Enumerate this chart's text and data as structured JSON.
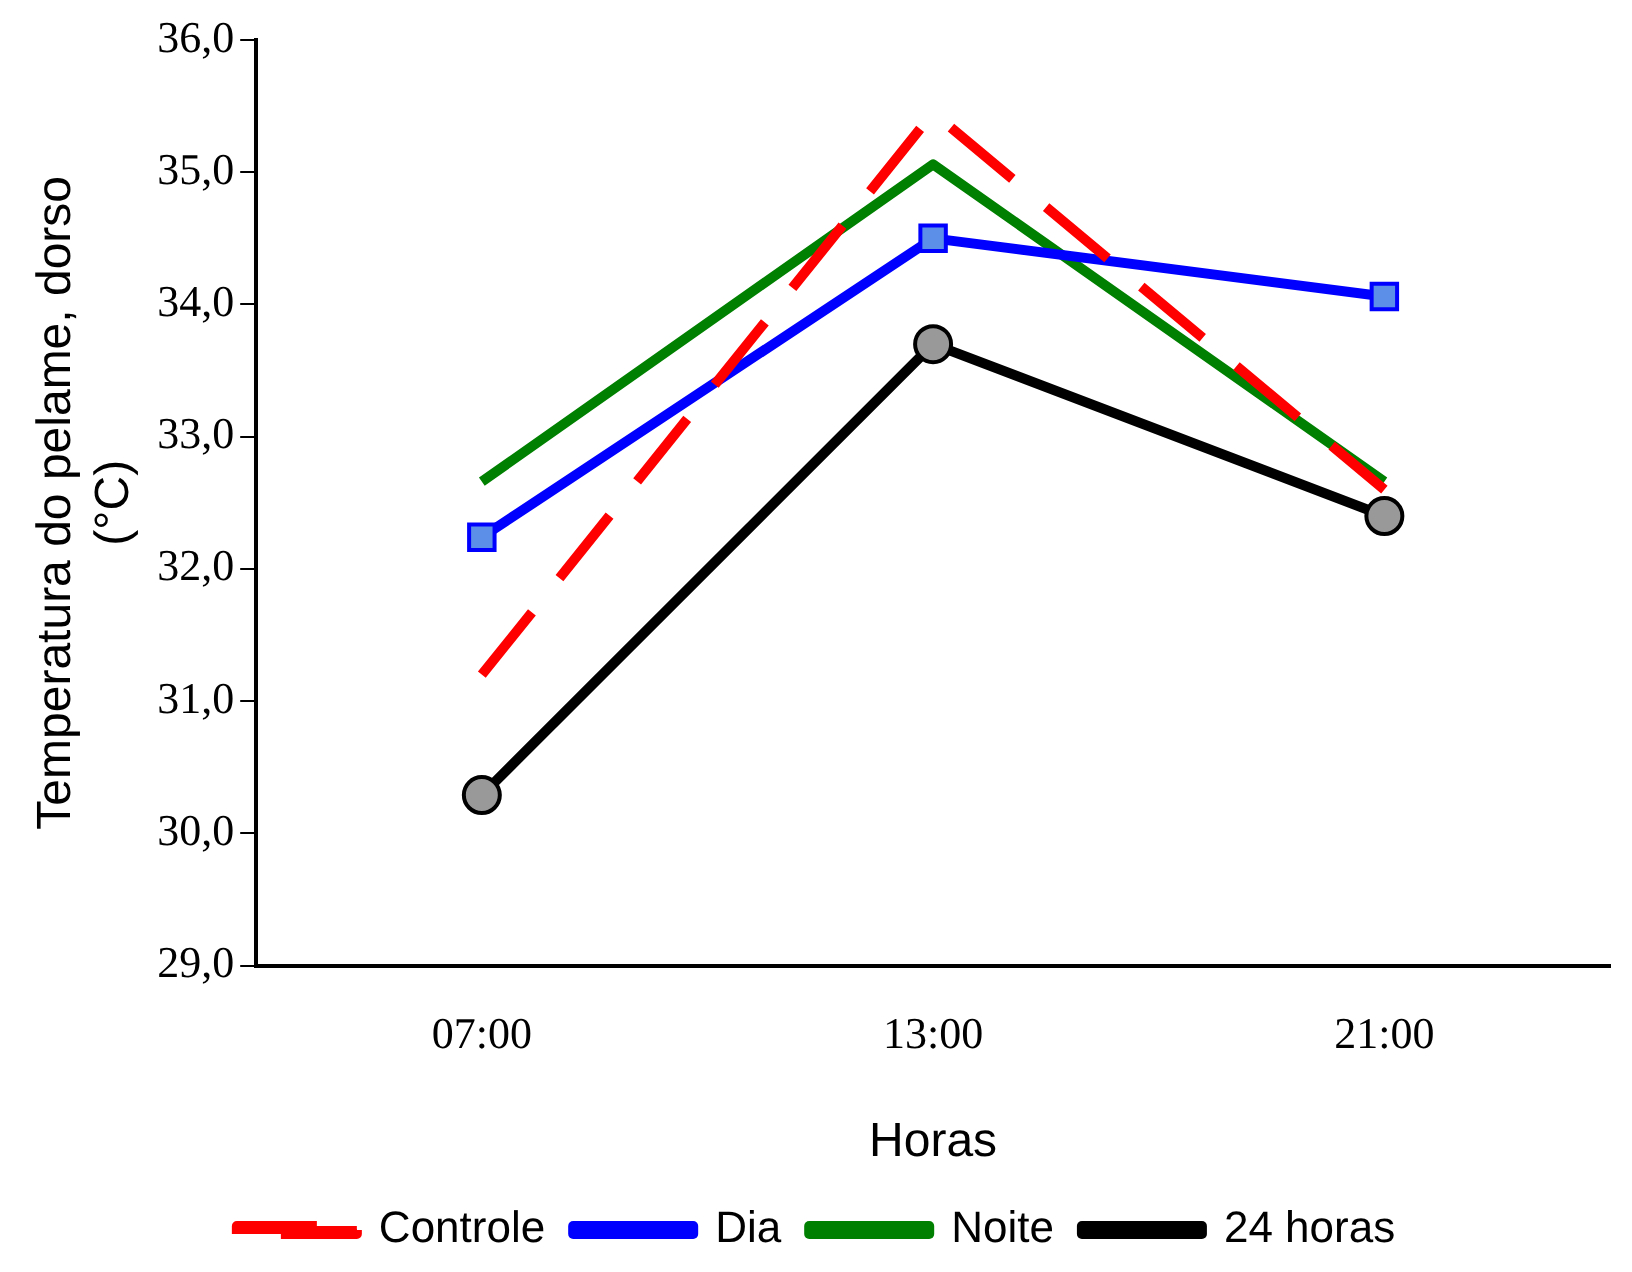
{
  "chart_data": {
    "type": "line",
    "xlabel": "Horas",
    "ylabel": "Temperatura do pelame, dorso (°C)",
    "categories": [
      "07:00",
      "13:00",
      "21:00"
    ],
    "series": [
      {
        "name": "Controle",
        "color": "#ff0000",
        "values": [
          31.2,
          35.45,
          32.6
        ],
        "marker": "none",
        "line_style": "dashed"
      },
      {
        "name": "Dia",
        "color": "#0000ff",
        "values": [
          32.24,
          34.5,
          34.06
        ],
        "marker": "square",
        "line_style": "solid"
      },
      {
        "name": "Noite",
        "color": "#008000",
        "values": [
          32.66,
          35.06,
          32.66
        ],
        "marker": "none",
        "line_style": "solid"
      },
      {
        "name": "24 horas",
        "color": "#000000",
        "values": [
          30.29,
          33.7,
          32.4
        ],
        "marker": "circle",
        "line_style": "solid"
      }
    ],
    "ylim": [
      29,
      36
    ],
    "yticks": [
      {
        "value": 29,
        "label": "29,0"
      },
      {
        "value": 30,
        "label": "30,0"
      },
      {
        "value": 31,
        "label": "31,0"
      },
      {
        "value": 32,
        "label": "32,0"
      },
      {
        "value": 33,
        "label": "33,0"
      },
      {
        "value": 34,
        "label": "34,0"
      },
      {
        "value": 35,
        "label": "35,0"
      },
      {
        "value": 36,
        "label": "36,0"
      }
    ],
    "grid": false,
    "legend": "bottom"
  }
}
